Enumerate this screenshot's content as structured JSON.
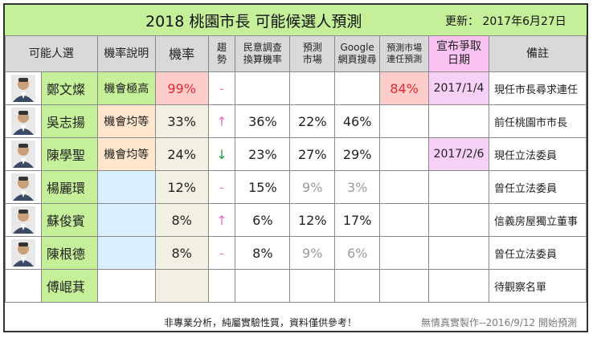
{
  "header": {
    "title": "2018  桃園市長  可能候選人預測",
    "updated": "更新：  2017年6月27日"
  },
  "columns": [
    "可能人選",
    "機率說明",
    "機率",
    "趨勢",
    "民意調查換算機率",
    "預測市場",
    "Google網頁搜尋",
    "預測市場連任預測",
    "宣布爭取日期",
    "備註"
  ],
  "columns_split": {
    "trend": [
      "趨",
      "勢"
    ],
    "poll": [
      "民意調查",
      "換算機率"
    ],
    "market": [
      "預測",
      "市場"
    ],
    "google": [
      "Google",
      "網頁搜尋"
    ],
    "reelect": [
      "預測市場",
      "連任預測"
    ],
    "declare": [
      "宣布爭取",
      "日期"
    ]
  },
  "colors": {
    "header_bg": "#c6ef9a",
    "name_bg": "#c6ef9a",
    "desc_high": "#c6ef9a",
    "desc_equal": "#ffe6cc",
    "desc_blank": "#d9efff",
    "prob_high": "#ffcccc",
    "date_bg": "#f6d1f5",
    "prob_bg": "#f2f0e2",
    "up_arrow": "#f06bc1",
    "down_arrow": "#1f9c3a",
    "red_text": "#e0292d"
  },
  "rows": [
    {
      "name": "鄭文燦",
      "desc": "機會極高",
      "prob": "99%",
      "trend": "-",
      "poll": "",
      "market": "",
      "google": "",
      "reelect": "84%",
      "declare": "2017/1/4",
      "note": "現任市長尋求連任",
      "photo": "person-portrait-icon"
    },
    {
      "name": "吳志揚",
      "desc": "機會均等",
      "prob": "33%",
      "trend": "↑",
      "poll": "36%",
      "market": "22%",
      "google": "46%",
      "reelect": "",
      "declare": "",
      "note": "前任桃園市市長",
      "photo": "person-portrait-icon"
    },
    {
      "name": "陳學聖",
      "desc": "機會均等",
      "prob": "24%",
      "trend": "↓",
      "poll": "23%",
      "market": "27%",
      "google": "29%",
      "reelect": "",
      "declare": "2017/2/6",
      "note": "現任立法委員",
      "photo": "person-portrait-icon"
    },
    {
      "name": "楊麗環",
      "desc": "",
      "prob": "12%",
      "trend": "-",
      "poll": "15%",
      "market": "9%",
      "google": "3%",
      "reelect": "",
      "declare": "",
      "note": "曾任立法委員",
      "photo": "person-portrait-icon"
    },
    {
      "name": "蘇俊賓",
      "desc": "",
      "prob": "8%",
      "trend": "↑",
      "poll": "6%",
      "market": "12%",
      "google": "17%",
      "reelect": "",
      "declare": "",
      "note": "信義房屋獨立董事",
      "photo": "person-portrait-icon"
    },
    {
      "name": "陳根德",
      "desc": "",
      "prob": "8%",
      "trend": "-",
      "poll": "8%",
      "market": "9%",
      "google": "6%",
      "reelect": "",
      "declare": "",
      "note": "曾任立法委員",
      "photo": "person-portrait-icon"
    },
    {
      "name": "傅崐萁",
      "desc": "",
      "prob": "",
      "trend": "",
      "poll": "",
      "market": "",
      "google": "",
      "reelect": "",
      "declare": "",
      "note": "待觀察名單",
      "photo": ""
    }
  ],
  "footer": {
    "disclaimer": "非專業分析，純屬實驗性質，資料僅供參考！",
    "credit": "無情真實製作--2016/9/12 開始預測"
  }
}
